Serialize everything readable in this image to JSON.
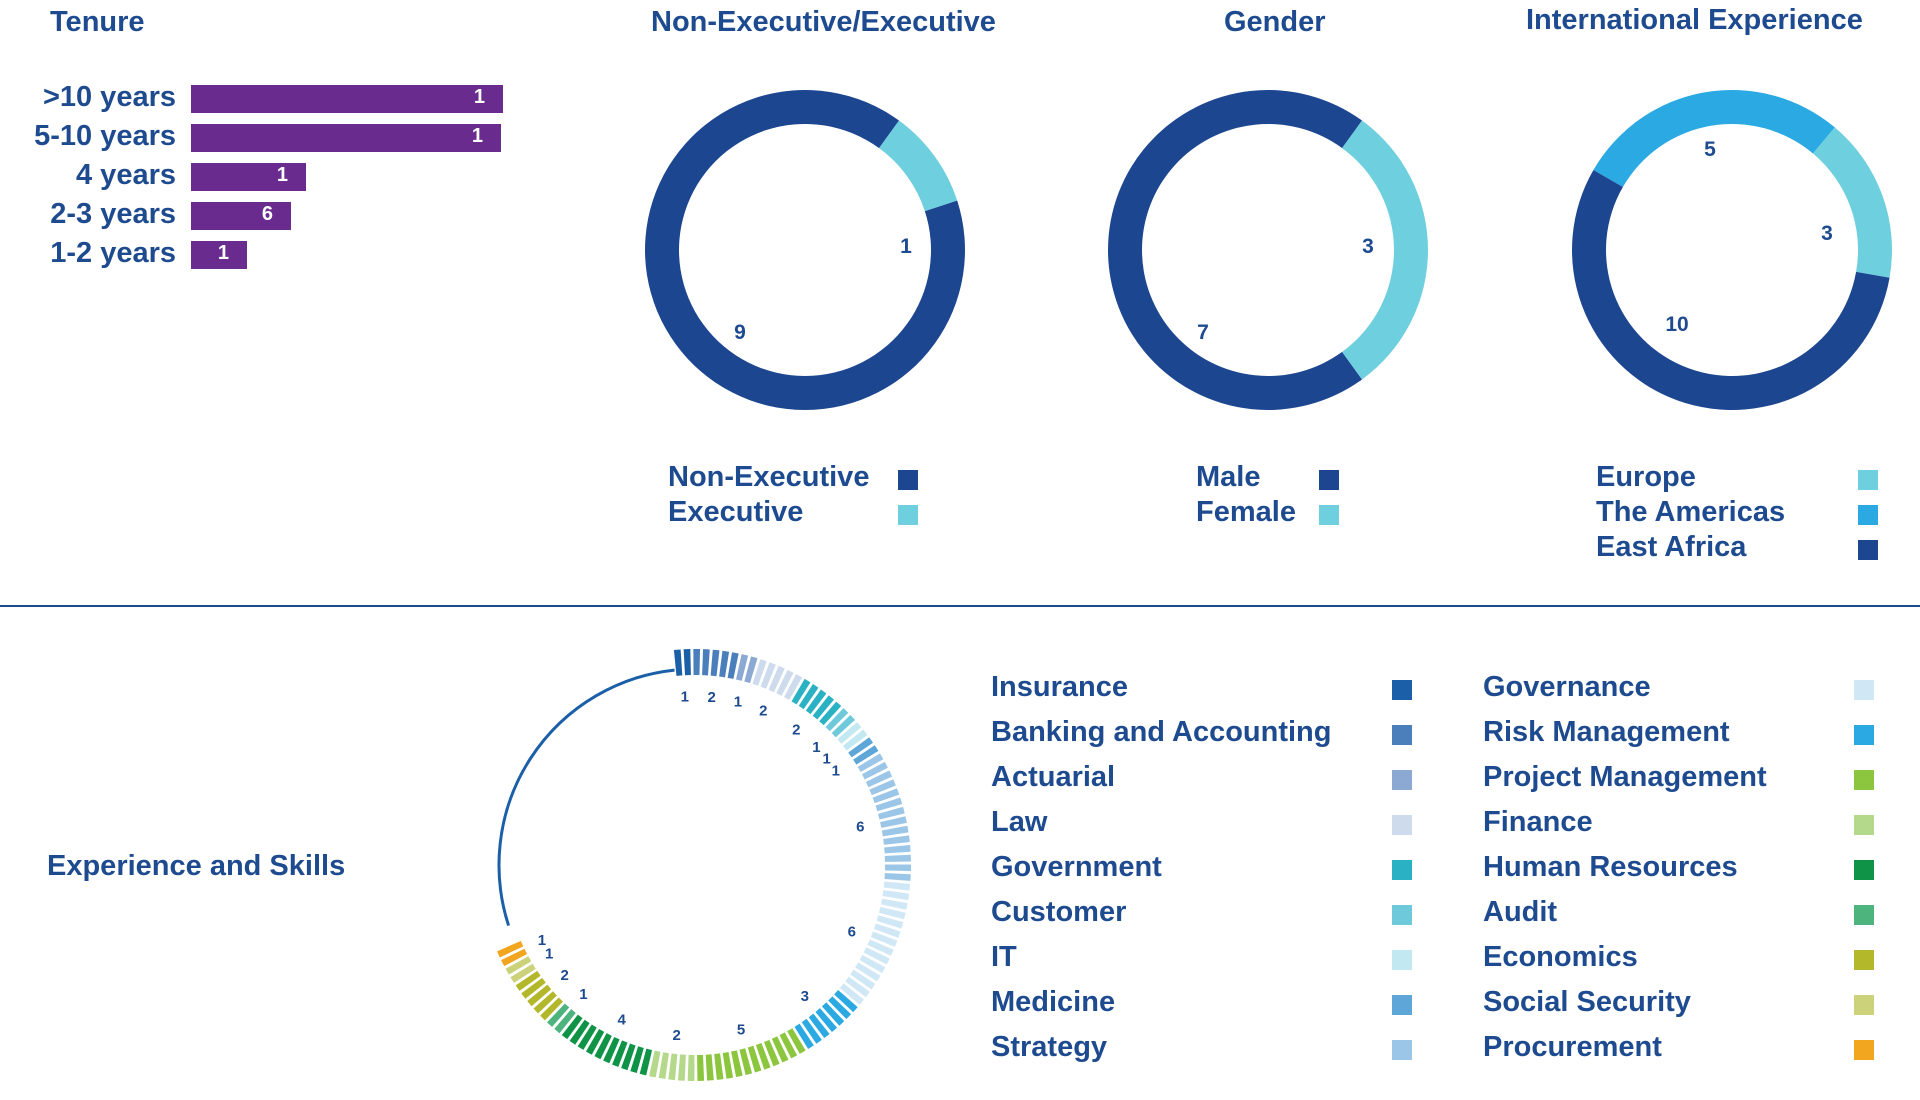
{
  "tenure": {
    "title": "Tenure",
    "chart_data": {
      "type": "bar",
      "orientation": "horizontal",
      "title": "Tenure",
      "categories": [
        ">10 years",
        "5-10 years",
        "4 years",
        "2-3 years",
        "1-2 years"
      ],
      "values": [
        1,
        1,
        1,
        6,
        1
      ],
      "bar_color": "#6a2b8f"
    }
  },
  "exec": {
    "title": "Non-Executive/Executive",
    "chart_data": {
      "type": "pie",
      "donut": true,
      "title": "Non-Executive/Executive",
      "labels": [
        "Non-Executive",
        "Executive"
      ],
      "values": [
        9,
        1
      ],
      "colors": [
        "#1d4690",
        "#6ecfdf"
      ]
    }
  },
  "gender": {
    "title": "Gender",
    "chart_data": {
      "type": "pie",
      "donut": true,
      "title": "Gender",
      "labels": [
        "Male",
        "Female"
      ],
      "values": [
        7,
        3
      ],
      "colors": [
        "#1d4690",
        "#6ecfdf"
      ]
    }
  },
  "intl": {
    "title": "International Experience",
    "chart_data": {
      "type": "pie",
      "donut": true,
      "title": "International Experience",
      "labels": [
        "Europe",
        "The Americas",
        "East Africa"
      ],
      "values": [
        3,
        5,
        10
      ],
      "colors": [
        "#6ecfdf",
        "#2aa9e2",
        "#1d4690"
      ]
    }
  },
  "skills": {
    "title": "Experience and Skills",
    "chart_data": {
      "type": "pie",
      "donut": true,
      "segmented": true,
      "title": "Experience and Skills",
      "labels": [
        "Insurance",
        "Banking and Accounting",
        "Actuarial",
        "Law",
        "Government",
        "Customer",
        "IT",
        "Medicine",
        "Strategy",
        "Governance",
        "Risk Management",
        "Project Management",
        "Finance",
        "Human Resources",
        "Audit",
        "Economics",
        "Social Security",
        "Procurement"
      ],
      "values": [
        1,
        2,
        1,
        2,
        2,
        1,
        1,
        1,
        6,
        6,
        3,
        5,
        2,
        4,
        1,
        2,
        1,
        1
      ],
      "colors": [
        "#1b5fa8",
        "#4a7fbc",
        "#8ba9d2",
        "#cddbec",
        "#2ab1c3",
        "#6ecadb",
        "#c2e8f1",
        "#5ea6d8",
        "#9cc6e8",
        "#d0e8f6",
        "#2aa9e2",
        "#8cc63f",
        "#b4d98a",
        "#0f9447",
        "#4db47e",
        "#b3b82b",
        "#cbd27a",
        "#f2a51f"
      ]
    }
  }
}
